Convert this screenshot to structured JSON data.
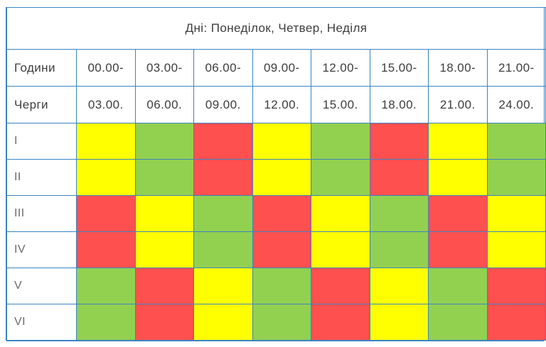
{
  "title": "Дні: Понеділок, Четвер, Неділя",
  "hours_label": "Години",
  "queues_label": "Черги",
  "time_starts": [
    "00.00-",
    "03.00-",
    "06.00-",
    "09.00-",
    "12.00-",
    "15.00-",
    "18.00-",
    "21.00-"
  ],
  "time_ends": [
    "03.00.",
    "06.00.",
    "09.00.",
    "12.00.",
    "15.00.",
    "18.00.",
    "21.00.",
    "24.00."
  ],
  "colors": {
    "yellow": "#ffff00",
    "green": "#92d050",
    "red": "#ff5050",
    "border": "#3b84c4"
  },
  "queues": [
    {
      "label": "I",
      "slots": [
        "yellow",
        "green",
        "red",
        "yellow",
        "green",
        "red",
        "yellow",
        "green"
      ]
    },
    {
      "label": "II",
      "slots": [
        "yellow",
        "green",
        "red",
        "yellow",
        "green",
        "red",
        "yellow",
        "green"
      ]
    },
    {
      "label": "III",
      "slots": [
        "red",
        "yellow",
        "green",
        "red",
        "yellow",
        "green",
        "red",
        "yellow"
      ]
    },
    {
      "label": "IV",
      "slots": [
        "red",
        "yellow",
        "green",
        "red",
        "yellow",
        "green",
        "red",
        "yellow"
      ]
    },
    {
      "label": "V",
      "slots": [
        "green",
        "red",
        "yellow",
        "green",
        "red",
        "yellow",
        "green",
        "red"
      ]
    },
    {
      "label": "VI",
      "slots": [
        "green",
        "red",
        "yellow",
        "green",
        "red",
        "yellow",
        "green",
        "red"
      ]
    }
  ]
}
